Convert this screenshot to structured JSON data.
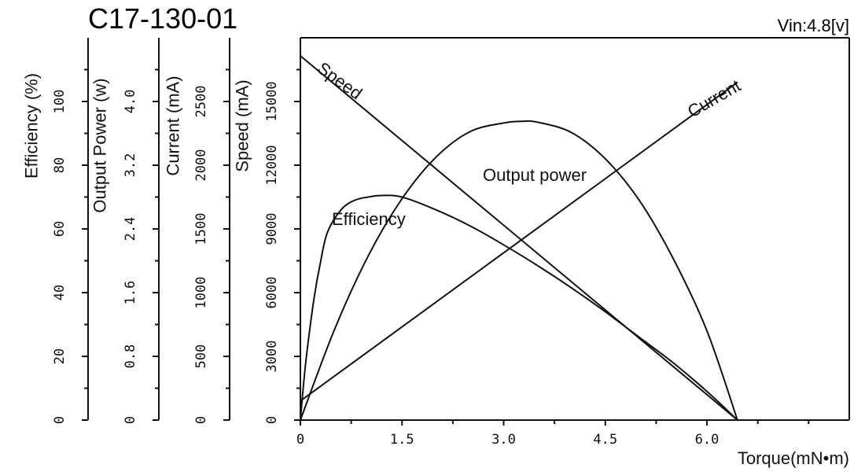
{
  "chart_data": {
    "type": "line",
    "title": "C17-130-01",
    "condition": "Vin:4.8[v]",
    "xlabel": "Torque(mN•m)",
    "xlim": [
      0,
      8.1
    ],
    "x_ticks": [
      "0",
      "1.5",
      "3.0",
      "4.5",
      "6.0"
    ],
    "y_axes": [
      {
        "key": "efficiency",
        "label": "Efficiency (%)",
        "range": [
          0,
          120
        ],
        "ticks": [
          "0",
          "20",
          "40",
          "60",
          "80",
          "100"
        ]
      },
      {
        "key": "output_power",
        "label": "Output Power (w)",
        "range": [
          0,
          4.8
        ],
        "ticks": [
          "0",
          "0.8",
          "1.6",
          "2.4",
          "3.2",
          "4.0"
        ]
      },
      {
        "key": "current",
        "label": "Current (mA)",
        "range": [
          0,
          3000
        ],
        "ticks": [
          "0",
          "500",
          "1000",
          "1500",
          "2000",
          "2500"
        ]
      },
      {
        "key": "speed",
        "label": "Speed  (mA)",
        "range": [
          0,
          18000
        ],
        "ticks": [
          "0",
          "3000",
          "6000",
          "9000",
          "12000",
          "15000"
        ]
      }
    ],
    "series": [
      {
        "name": "Speed",
        "axis": "speed",
        "x": [
          0,
          6.45
        ],
        "y": [
          17150,
          0
        ]
      },
      {
        "name": "Current",
        "axis": "current",
        "x": [
          0,
          6.45
        ],
        "y": [
          150,
          2650
        ]
      },
      {
        "name": "Output power",
        "axis": "output_power",
        "x": [
          0,
          0.5,
          1.0,
          1.5,
          2.0,
          2.5,
          3.0,
          3.25,
          3.5,
          4.0,
          4.5,
          5.0,
          5.5,
          6.0,
          6.45
        ],
        "y": [
          0,
          1.13,
          2.06,
          2.78,
          3.3,
          3.62,
          3.73,
          3.75,
          3.74,
          3.61,
          3.28,
          2.76,
          2.03,
          1.12,
          0
        ]
      },
      {
        "name": "Efficiency",
        "axis": "efficiency",
        "x": [
          0,
          0.05,
          0.1,
          0.2,
          0.3,
          0.4,
          0.6,
          0.8,
          1.0,
          1.2,
          1.5,
          2.0,
          2.5,
          3.0,
          3.5,
          4.0,
          4.5,
          5.0,
          5.5,
          6.0,
          6.45
        ],
        "y": [
          0,
          12,
          22,
          38,
          50,
          59,
          66,
          69,
          70,
          70.5,
          70,
          66,
          61,
          55,
          48.5,
          41.5,
          34,
          26,
          18,
          9,
          0
        ]
      }
    ],
    "curve_labels": {
      "speed": "Speed",
      "current": "Current",
      "output_power": "Output power",
      "efficiency": "Efficiency"
    },
    "grid": false
  }
}
